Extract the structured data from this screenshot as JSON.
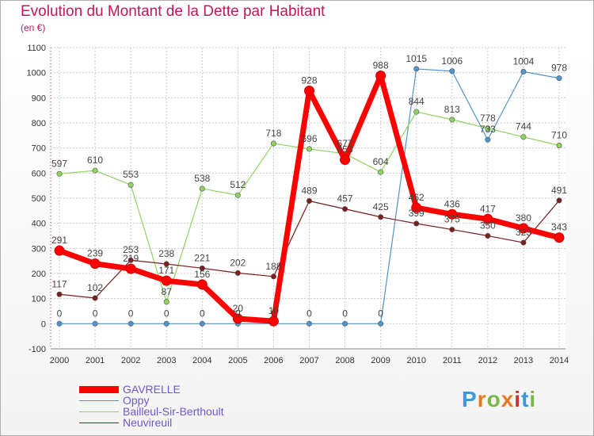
{
  "chart_data": {
    "type": "line",
    "title": "Evolution du Montant de la Dette par Habitant",
    "subtitle": "(en €)",
    "x": [
      "2000",
      "2001",
      "2002",
      "2003",
      "2004",
      "2005",
      "2006",
      "2007",
      "2008",
      "2009",
      "2010",
      "2011",
      "2012",
      "2013",
      "2014"
    ],
    "ylim": [
      -100,
      1100
    ],
    "yticks": [
      "-100",
      "0",
      "100",
      "200",
      "300",
      "400",
      "500",
      "600",
      "700",
      "800",
      "900",
      "1000",
      "1100"
    ],
    "grid": true,
    "legend_position": "bottom-left",
    "series": [
      {
        "name": "GAVRELLE",
        "color": "#ff0000",
        "values": [
          291,
          239,
          219,
          171,
          156,
          20,
          10,
          928,
          653,
          988,
          462,
          436,
          417,
          380,
          343
        ],
        "labels": [
          "291",
          "239",
          "219",
          "171",
          "156",
          "20",
          "10",
          "928",
          "653",
          "988",
          "462",
          "436",
          "417",
          "380",
          "343"
        ]
      },
      {
        "name": "Oppy",
        "color": "#4f94cd",
        "values": [
          0,
          0,
          0,
          0,
          0,
          0,
          0,
          0,
          0,
          0,
          1015,
          1006,
          733,
          1004,
          978
        ],
        "labels": [
          "0",
          "0",
          "0",
          "0",
          "0",
          "0",
          "0",
          "0",
          "0",
          "0",
          "1015",
          "1006",
          "733",
          "1004",
          "978"
        ]
      },
      {
        "name": "Bailleul-Sir-Berthoult",
        "color": "#8fd45f",
        "values": [
          597,
          610,
          553,
          87,
          538,
          512,
          718,
          696,
          677,
          604,
          844,
          813,
          778,
          744,
          710
        ],
        "labels": [
          "597",
          "610",
          "553",
          "87",
          "538",
          "512",
          "718",
          "696",
          "677",
          "604",
          "844",
          "813",
          "778",
          "744",
          "710"
        ]
      },
      {
        "name": "Neuvireuil",
        "color": "#7a1e1e",
        "values": [
          117,
          102,
          253,
          238,
          221,
          202,
          188,
          489,
          457,
          425,
          399,
          375,
          350,
          323,
          491
        ],
        "labels": [
          "117",
          "102",
          "253",
          "238",
          "221",
          "202",
          "188",
          "489",
          "457",
          "425",
          "399",
          "375",
          "350",
          "323",
          "491"
        ]
      }
    ]
  },
  "logo": {
    "letters": [
      "P",
      "r",
      "o",
      "x",
      "i",
      "t",
      "i"
    ],
    "colors": [
      "#3a9ad9",
      "#e87a1d",
      "#7ab648",
      "#e87a1d",
      "#c0392b",
      "#3a9ad9",
      "#7ab648"
    ]
  }
}
